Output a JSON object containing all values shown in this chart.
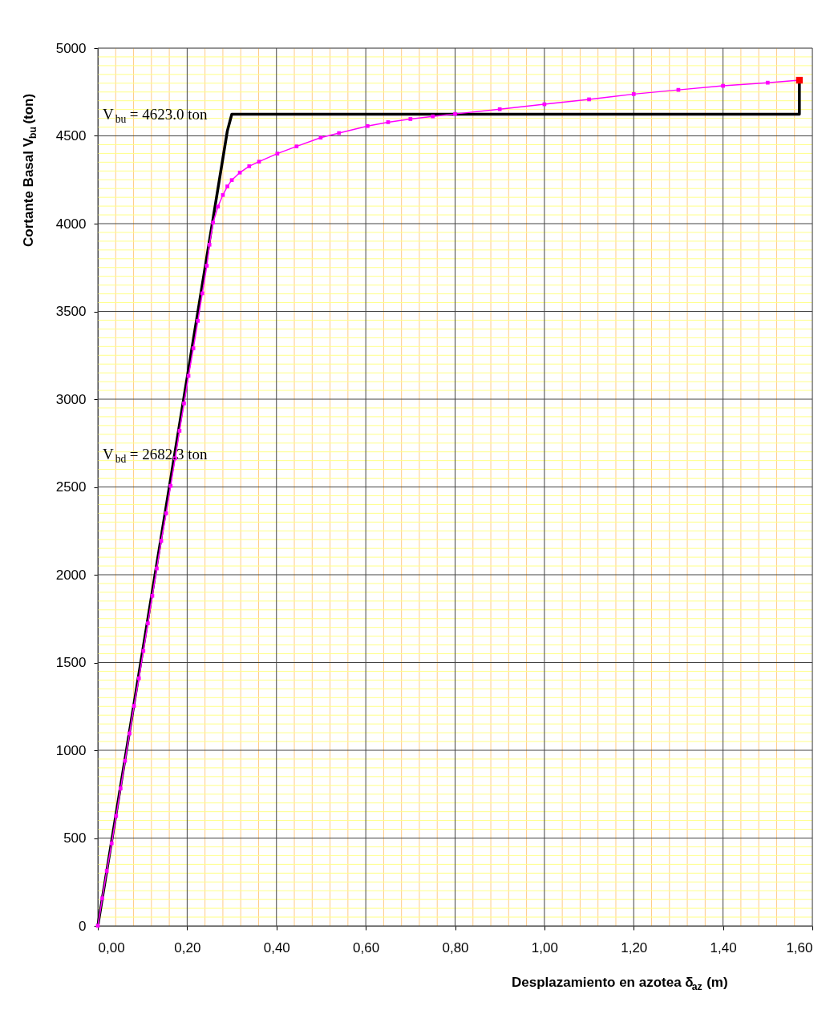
{
  "chart_data": {
    "type": "line",
    "xlabel": "Desplazamiento en azotea δ$_{az}$ (m)",
    "ylabel": "Cortante Basal V$_{bu}$ (ton)",
    "annotations": [
      "V$_{bu}$ = 4623.0 ton",
      "V$_{bd}$ = 2682.3 ton"
    ],
    "series": [
      {
        "color": "#000000",
        "marker": "none",
        "x": [
          0,
          0.29,
          0.3,
          1.571,
          1.571
        ],
        "values": [
          0,
          4528,
          4623,
          4623,
          4817
        ]
      },
      {
        "color": "#ff00ff",
        "marker": "square",
        "x": [
          0,
          0.01,
          0.02,
          0.031,
          0.041,
          0.051,
          0.061,
          0.071,
          0.081,
          0.092,
          0.102,
          0.112,
          0.122,
          0.132,
          0.142,
          0.153,
          0.163,
          0.173,
          0.183,
          0.193,
          0.203,
          0.214,
          0.224,
          0.234,
          0.244,
          0.25,
          0.258,
          0.269,
          0.28,
          0.29,
          0.3,
          0.318,
          0.339,
          0.361,
          0.402,
          0.445,
          0.499,
          0.54,
          0.604,
          0.65,
          0.7,
          0.75,
          0.8,
          0.9,
          1.0,
          1.1,
          1.2,
          1.3,
          1.4,
          1.5,
          1.571
        ],
        "values": [
          0,
          157,
          313,
          470,
          626,
          783,
          940,
          1096,
          1253,
          1410,
          1566,
          1723,
          1880,
          2036,
          2193,
          2350,
          2506,
          2663,
          2820,
          2976,
          3133,
          3290,
          3446,
          3603,
          3760,
          3880,
          4006,
          4097,
          4163,
          4212,
          4248,
          4291,
          4327,
          4353,
          4399,
          4440,
          4490,
          4516,
          4556,
          4578,
          4596,
          4611,
          4625,
          4652,
          4680,
          4708,
          4738,
          4762,
          4785,
          4803,
          4817
        ]
      },
      {
        "type": "scatter",
        "color": "#ff0000",
        "marker": "square",
        "x": [
          1.571
        ],
        "values": [
          4817
        ]
      }
    ],
    "xlim": [
      0,
      1.6
    ],
    "xticks": [
      {
        "value": 0,
        "label": "0,00"
      },
      {
        "value": 0.2,
        "label": "0,20"
      },
      {
        "value": 0.4,
        "label": "0,40"
      },
      {
        "value": 0.6,
        "label": "0,60"
      },
      {
        "value": 0.8,
        "label": "0,80"
      },
      {
        "value": 1.0,
        "label": "1,00"
      },
      {
        "value": 1.2,
        "label": "1,20"
      },
      {
        "value": 1.4,
        "label": "1,40"
      },
      {
        "value": 1.6,
        "label": "1,60"
      },
      {
        "value": 0.04,
        "label": null
      },
      {
        "value": 0.08,
        "label": null
      },
      {
        "value": 0.12,
        "label": null
      },
      {
        "value": 0.16,
        "label": null
      },
      {
        "value": 0.24,
        "label": null
      },
      {
        "value": 0.28,
        "label": null
      },
      {
        "value": 0.32,
        "label": null
      },
      {
        "value": 0.36,
        "label": null
      },
      {
        "value": 0.44,
        "label": null
      },
      {
        "value": 0.48,
        "label": null
      },
      {
        "value": 0.52,
        "label": null
      },
      {
        "value": 0.56,
        "label": null
      },
      {
        "value": 0.64,
        "label": null
      },
      {
        "value": 0.68,
        "label": null
      },
      {
        "value": 0.72,
        "label": null
      },
      {
        "value": 0.76,
        "label": null
      },
      {
        "value": 0.84,
        "label": null
      },
      {
        "value": 0.88,
        "label": null
      },
      {
        "value": 0.92,
        "label": null
      },
      {
        "value": 0.96,
        "label": null
      },
      {
        "value": 1.04,
        "label": null
      },
      {
        "value": 1.08,
        "label": null
      },
      {
        "value": 1.12,
        "label": null
      },
      {
        "value": 1.16,
        "label": null
      },
      {
        "value": 1.24,
        "label": null
      },
      {
        "value": 1.28,
        "label": null
      },
      {
        "value": 1.32,
        "label": null
      },
      {
        "value": 1.36,
        "label": null
      },
      {
        "value": 1.44,
        "label": null
      },
      {
        "value": 1.48,
        "label": null
      },
      {
        "value": 1.52,
        "label": null
      },
      {
        "value": 1.56,
        "label": null
      }
    ],
    "ylim": [
      0,
      5000
    ],
    "yticks": [
      0,
      500,
      1000,
      1500,
      2000,
      2500,
      3000,
      3500,
      4000,
      4500,
      5000,
      {
        "value": 50,
        "label": null
      },
      {
        "value": 100,
        "label": null
      },
      {
        "value": 150,
        "label": null
      },
      {
        "value": 200,
        "label": null
      },
      {
        "value": 250,
        "label": null
      },
      {
        "value": 300,
        "label": null
      },
      {
        "value": 350,
        "label": null
      },
      {
        "value": 400,
        "label": null
      },
      {
        "value": 450,
        "label": null
      },
      {
        "value": 550,
        "label": null
      },
      {
        "value": 600,
        "label": null
      },
      {
        "value": 650,
        "label": null
      },
      {
        "value": 700,
        "label": null
      },
      {
        "value": 750,
        "label": null
      },
      {
        "value": 800,
        "label": null
      },
      {
        "value": 850,
        "label": null
      },
      {
        "value": 900,
        "label": null
      },
      {
        "value": 950,
        "label": null
      },
      {
        "value": 1050,
        "label": null
      },
      {
        "value": 1100,
        "label": null
      },
      {
        "value": 1150,
        "label": null
      },
      {
        "value": 1200,
        "label": null
      },
      {
        "value": 1250,
        "label": null
      },
      {
        "value": 1300,
        "label": null
      },
      {
        "value": 1350,
        "label": null
      },
      {
        "value": 1400,
        "label": null
      },
      {
        "value": 1450,
        "label": null
      },
      {
        "value": 1550,
        "label": null
      },
      {
        "value": 1600,
        "label": null
      },
      {
        "value": 1650,
        "label": null
      },
      {
        "value": 1700,
        "label": null
      },
      {
        "value": 1750,
        "label": null
      },
      {
        "value": 1800,
        "label": null
      },
      {
        "value": 1850,
        "label": null
      },
      {
        "value": 1900,
        "label": null
      },
      {
        "value": 1950,
        "label": null
      },
      {
        "value": 2050,
        "label": null
      },
      {
        "value": 2100,
        "label": null
      },
      {
        "value": 2150,
        "label": null
      },
      {
        "value": 2200,
        "label": null
      },
      {
        "value": 2250,
        "label": null
      },
      {
        "value": 2300,
        "label": null
      },
      {
        "value": 2350,
        "label": null
      },
      {
        "value": 2400,
        "label": null
      },
      {
        "value": 2450,
        "label": null
      },
      {
        "value": 2550,
        "label": null
      },
      {
        "value": 2600,
        "label": null
      },
      {
        "value": 2650,
        "label": null
      },
      {
        "value": 2700,
        "label": null
      },
      {
        "value": 2750,
        "label": null
      },
      {
        "value": 2800,
        "label": null
      },
      {
        "value": 2850,
        "label": null
      },
      {
        "value": 2900,
        "label": null
      },
      {
        "value": 2950,
        "label": null
      },
      {
        "value": 3050,
        "label": null
      },
      {
        "value": 3100,
        "label": null
      },
      {
        "value": 3150,
        "label": null
      },
      {
        "value": 3200,
        "label": null
      },
      {
        "value": 3250,
        "label": null
      },
      {
        "value": 3300,
        "label": null
      },
      {
        "value": 3350,
        "label": null
      },
      {
        "value": 3400,
        "label": null
      },
      {
        "value": 3450,
        "label": null
      },
      {
        "value": 3550,
        "label": null
      },
      {
        "value": 3600,
        "label": null
      },
      {
        "value": 3650,
        "label": null
      },
      {
        "value": 3700,
        "label": null
      },
      {
        "value": 3750,
        "label": null
      },
      {
        "value": 3800,
        "label": null
      },
      {
        "value": 3850,
        "label": null
      },
      {
        "value": 3900,
        "label": null
      },
      {
        "value": 3950,
        "label": null
      },
      {
        "value": 4050,
        "label": null
      },
      {
        "value": 4100,
        "label": null
      },
      {
        "value": 4150,
        "label": null
      },
      {
        "value": 4200,
        "label": null
      },
      {
        "value": 4250,
        "label": null
      },
      {
        "value": 4300,
        "label": null
      },
      {
        "value": 4350,
        "label": null
      },
      {
        "value": 4400,
        "label": null
      },
      {
        "value": 4450,
        "label": null
      },
      {
        "value": 4550,
        "label": null
      },
      {
        "value": 4600,
        "label": null
      },
      {
        "value": 4650,
        "label": null
      },
      {
        "value": 4700,
        "label": null
      },
      {
        "value": 4750,
        "label": null
      },
      {
        "value": 4800,
        "label": null
      },
      {
        "value": 4850,
        "label": null
      },
      {
        "value": 4900,
        "label": null
      },
      {
        "value": 4950,
        "label": null
      }
    ],
    "grid": true
  }
}
